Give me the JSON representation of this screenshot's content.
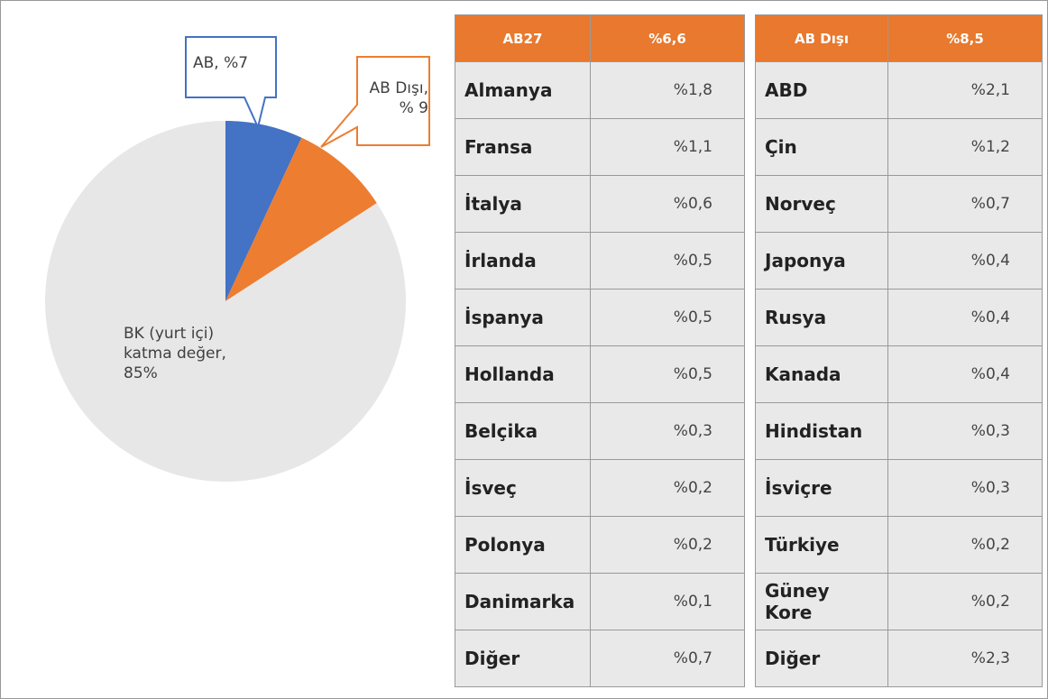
{
  "chart_data": {
    "type": "pie",
    "values": [
      7,
      9,
      85
    ],
    "value_labels": [
      "AB, %7",
      "AB Dışı, % 9",
      "BK (yurt içi) katma değer, 85%"
    ],
    "colors": [
      "#4472c4",
      "#ed7d31",
      "#e7e7e7"
    ]
  },
  "tables": [
    {
      "header": [
        "AB27",
        "%6,6"
      ],
      "rows": [
        [
          "Almanya",
          "%1,8"
        ],
        [
          "Fransa",
          "%1,1"
        ],
        [
          "İtalya",
          "%0,6"
        ],
        [
          "İrlanda",
          "%0,5"
        ],
        [
          "İspanya",
          "%0,5"
        ],
        [
          "Hollanda",
          "%0,5"
        ],
        [
          "Belçika",
          "%0,3"
        ],
        [
          "İsveç",
          "%0,2"
        ],
        [
          "Polonya",
          "%0,2"
        ],
        [
          "Danimarka",
          "%0,1"
        ],
        [
          "Diğer",
          "%0,7"
        ]
      ]
    },
    {
      "header": [
        "AB Dışı",
        "%8,5"
      ],
      "rows": [
        [
          "ABD",
          "%2,1"
        ],
        [
          "Çin",
          "%1,2"
        ],
        [
          "Norveç",
          "%0,7"
        ],
        [
          "Japonya",
          "%0,4"
        ],
        [
          "Rusya",
          "%0,4"
        ],
        [
          "Kanada",
          "%0,4"
        ],
        [
          "Hindistan",
          "%0,3"
        ],
        [
          "İsviçre",
          "%0,3"
        ],
        [
          "Türkiye",
          "%0,2"
        ],
        [
          "Güney Kore",
          "%0,2"
        ],
        [
          "Diğer",
          "%2,3"
        ]
      ]
    }
  ]
}
